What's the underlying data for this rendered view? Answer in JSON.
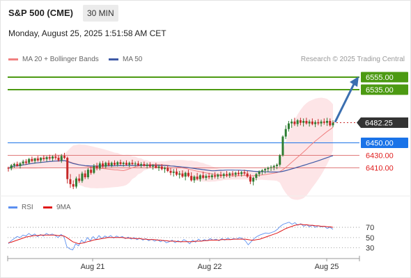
{
  "header": {
    "instrument": "S&P 500 (CME)",
    "interval": "30 MIN",
    "datetime": "Monday, August 25, 2025 1:51:58 AM CET",
    "credit": "Research © 2025 Trading Central"
  },
  "legend": {
    "ma20_label": "MA 20 + Bollinger Bands",
    "ma50_label": "MA 50",
    "rsi_label": "RSI",
    "ma9_label": "9MA"
  },
  "colors": {
    "ma20": "#f08080",
    "ma50": "#3f5aa6",
    "bollinger_fill": "#fde2e4",
    "resistance": "#4c9a12",
    "pivot": "#1a73e8",
    "support": "#e07a7a",
    "support_text": "#e02020",
    "price_tag": "#333333",
    "candle_up": "#2e7d32",
    "candle_down": "#c62828",
    "rsi": "#5b8ff0",
    "rsi_ma": "#e01818",
    "arrow": "#3b6fb0"
  },
  "chart_data": [
    {
      "type": "candlestick",
      "title": "S&P 500 (CME)",
      "interval": "30 MIN",
      "x_ticks": [
        "Aug 21",
        "Aug 22",
        "Aug 25"
      ],
      "y_range": [
        6385,
        6565
      ],
      "last_price": 6482.25,
      "series": [
        {
          "name": "MA 20 + Bollinger Bands",
          "type": "line-band"
        },
        {
          "name": "MA 50",
          "type": "line"
        }
      ],
      "levels": [
        {
          "value": 6555.0,
          "label": "6555.00",
          "kind": "resistance"
        },
        {
          "value": 6535.0,
          "label": "6535.00",
          "kind": "resistance"
        },
        {
          "value": 6450.0,
          "label": "6450.00",
          "kind": "pivot"
        },
        {
          "value": 6430.0,
          "label": "6430.00",
          "kind": "support"
        },
        {
          "value": 6410.0,
          "label": "6410.00",
          "kind": "support"
        }
      ],
      "projection": {
        "from": 6482,
        "to": 6555,
        "direction": "up"
      },
      "candles": [
        [
          6410,
          6412,
          6404,
          6409
        ],
        [
          6409,
          6416,
          6406,
          6414
        ],
        [
          6414,
          6418,
          6410,
          6416
        ],
        [
          6416,
          6420,
          6412,
          6413
        ],
        [
          6413,
          6419,
          6409,
          6417
        ],
        [
          6417,
          6423,
          6414,
          6420
        ],
        [
          6420,
          6424,
          6415,
          6418
        ],
        [
          6418,
          6426,
          6416,
          6424
        ],
        [
          6424,
          6428,
          6419,
          6421
        ],
        [
          6421,
          6426,
          6417,
          6425
        ],
        [
          6425,
          6429,
          6420,
          6422
        ],
        [
          6422,
          6427,
          6418,
          6426
        ],
        [
          6426,
          6430,
          6421,
          6424
        ],
        [
          6424,
          6429,
          6420,
          6427
        ],
        [
          6427,
          6431,
          6422,
          6425
        ],
        [
          6425,
          6430,
          6421,
          6428
        ],
        [
          6428,
          6433,
          6423,
          6426
        ],
        [
          6426,
          6430,
          6420,
          6422
        ],
        [
          6422,
          6432,
          6418,
          6429
        ],
        [
          6429,
          6434,
          6424,
          6426
        ],
        [
          6426,
          6428,
          6385,
          6392
        ],
        [
          6392,
          6400,
          6378,
          6384
        ],
        [
          6384,
          6390,
          6376,
          6380
        ],
        [
          6380,
          6396,
          6377,
          6393
        ],
        [
          6393,
          6400,
          6386,
          6389
        ],
        [
          6389,
          6404,
          6386,
          6401
        ],
        [
          6401,
          6406,
          6392,
          6395
        ],
        [
          6395,
          6410,
          6392,
          6407
        ],
        [
          6407,
          6412,
          6399,
          6402
        ],
        [
          6402,
          6416,
          6400,
          6413
        ],
        [
          6413,
          6418,
          6406,
          6409
        ],
        [
          6409,
          6420,
          6406,
          6417
        ],
        [
          6417,
          6421,
          6410,
          6412
        ],
        [
          6412,
          6420,
          6409,
          6418
        ],
        [
          6418,
          6422,
          6412,
          6414
        ],
        [
          6414,
          6420,
          6411,
          6418
        ],
        [
          6418,
          6422,
          6413,
          6415
        ],
        [
          6415,
          6421,
          6412,
          6419
        ],
        [
          6419,
          6423,
          6414,
          6416
        ],
        [
          6416,
          6420,
          6412,
          6418
        ],
        [
          6418,
          6422,
          6413,
          6415
        ],
        [
          6415,
          6420,
          6411,
          6418
        ],
        [
          6418,
          6423,
          6414,
          6416
        ],
        [
          6416,
          6420,
          6412,
          6417
        ],
        [
          6417,
          6421,
          6413,
          6414
        ],
        [
          6414,
          6419,
          6410,
          6416
        ],
        [
          6416,
          6420,
          6412,
          6413
        ],
        [
          6413,
          6418,
          6409,
          6415
        ],
        [
          6415,
          6419,
          6410,
          6412
        ],
        [
          6412,
          6416,
          6407,
          6414
        ],
        [
          6414,
          6418,
          6409,
          6410
        ],
        [
          6410,
          6415,
          6405,
          6412
        ],
        [
          6412,
          6416,
          6406,
          6408
        ],
        [
          6408,
          6412,
          6402,
          6410
        ],
        [
          6410,
          6414,
          6403,
          6405
        ],
        [
          6405,
          6410,
          6398,
          6402
        ],
        [
          6402,
          6408,
          6396,
          6404
        ],
        [
          6404,
          6409,
          6397,
          6399
        ],
        [
          6399,
          6405,
          6393,
          6401
        ],
        [
          6401,
          6406,
          6394,
          6396
        ],
        [
          6396,
          6404,
          6390,
          6402
        ],
        [
          6402,
          6407,
          6395,
          6397
        ],
        [
          6397,
          6403,
          6388,
          6390
        ],
        [
          6390,
          6398,
          6386,
          6396
        ],
        [
          6396,
          6402,
          6390,
          6392
        ],
        [
          6392,
          6400,
          6388,
          6398
        ],
        [
          6398,
          6404,
          6392,
          6394
        ],
        [
          6394,
          6400,
          6390,
          6397
        ],
        [
          6397,
          6402,
          6392,
          6395
        ],
        [
          6395,
          6401,
          6391,
          6398
        ],
        [
          6398,
          6403,
          6393,
          6396
        ],
        [
          6396,
          6401,
          6392,
          6399
        ],
        [
          6399,
          6404,
          6394,
          6397
        ],
        [
          6397,
          6402,
          6393,
          6400
        ],
        [
          6400,
          6405,
          6395,
          6398
        ],
        [
          6398,
          6403,
          6394,
          6401
        ],
        [
          6401,
          6405,
          6396,
          6399
        ],
        [
          6399,
          6404,
          6395,
          6402
        ],
        [
          6402,
          6406,
          6397,
          6400
        ],
        [
          6400,
          6405,
          6396,
          6403
        ],
        [
          6403,
          6407,
          6398,
          6401
        ],
        [
          6401,
          6405,
          6394,
          6396
        ],
        [
          6396,
          6400,
          6384,
          6388
        ],
        [
          6388,
          6396,
          6382,
          6394
        ],
        [
          6394,
          6402,
          6390,
          6400
        ],
        [
          6400,
          6406,
          6396,
          6404
        ],
        [
          6404,
          6408,
          6399,
          6406
        ],
        [
          6406,
          6410,
          6401,
          6408
        ],
        [
          6408,
          6412,
          6403,
          6410
        ],
        [
          6410,
          6414,
          6405,
          6411
        ],
        [
          6411,
          6415,
          6406,
          6413
        ],
        [
          6413,
          6417,
          6408,
          6415
        ],
        [
          6415,
          6432,
          6412,
          6430
        ],
        [
          6430,
          6462,
          6428,
          6460
        ],
        [
          6460,
          6478,
          6456,
          6472
        ],
        [
          6472,
          6485,
          6468,
          6481
        ],
        [
          6481,
          6488,
          6474,
          6484
        ],
        [
          6484,
          6490,
          6477,
          6480
        ],
        [
          6480,
          6488,
          6476,
          6486
        ],
        [
          6486,
          6490,
          6478,
          6482
        ],
        [
          6482,
          6489,
          6476,
          6485
        ],
        [
          6485,
          6490,
          6479,
          6481
        ],
        [
          6481,
          6487,
          6476,
          6484
        ],
        [
          6484,
          6489,
          6478,
          6480
        ],
        [
          6480,
          6486,
          6475,
          6483
        ],
        [
          6483,
          6488,
          6478,
          6481
        ],
        [
          6481,
          6487,
          6476,
          6484
        ],
        [
          6484,
          6489,
          6479,
          6482
        ],
        [
          6482,
          6490,
          6477,
          6485
        ],
        [
          6485,
          6489,
          6476,
          6478
        ],
        [
          6478,
          6486,
          6475,
          6482.25
        ]
      ]
    },
    {
      "type": "line",
      "title": "RSI",
      "series": [
        {
          "name": "RSI"
        },
        {
          "name": "9MA"
        }
      ],
      "y_ticks": [
        30,
        50,
        70
      ],
      "ylim": [
        20,
        85
      ],
      "rsi": [
        38,
        44,
        48,
        52,
        50,
        55,
        53,
        58,
        54,
        57,
        52,
        56,
        53,
        58,
        55,
        57,
        54,
        50,
        56,
        52,
        32,
        28,
        26,
        38,
        34,
        45,
        40,
        50,
        44,
        52,
        46,
        54,
        48,
        53,
        50,
        54,
        49,
        53,
        50,
        52,
        48,
        51,
        47,
        50,
        46,
        49,
        45,
        48,
        44,
        47,
        43,
        46,
        42,
        45,
        40,
        42,
        45,
        40,
        44,
        41,
        46,
        43,
        38,
        45,
        41,
        47,
        43,
        46,
        44,
        48,
        45,
        47,
        44,
        48,
        45,
        49,
        46,
        48,
        47,
        50,
        48,
        44,
        36,
        42,
        48,
        52,
        55,
        57,
        59,
        58,
        60,
        62,
        66,
        72,
        76,
        78,
        80,
        76,
        79,
        74,
        77,
        72,
        75,
        71,
        74,
        70,
        73,
        71,
        72,
        68,
        70,
        66
      ],
      "rsi_ma": [
        40,
        41,
        43,
        45,
        47,
        49,
        51,
        52,
        53,
        54,
        54,
        55,
        55,
        55,
        55,
        55,
        55,
        54,
        54,
        53,
        50,
        46,
        42,
        40,
        38,
        39,
        40,
        42,
        43,
        45,
        46,
        47,
        48,
        49,
        50,
        50,
        50,
        50,
        50,
        50,
        49,
        49,
        49,
        48,
        48,
        48,
        47,
        47,
        46,
        46,
        46,
        45,
        45,
        44,
        44,
        43,
        43,
        43,
        42,
        42,
        42,
        42,
        42,
        42,
        43,
        43,
        43,
        44,
        44,
        45,
        45,
        45,
        45,
        46,
        46,
        46,
        46,
        47,
        47,
        47,
        47,
        47,
        46,
        45,
        45,
        46,
        47,
        49,
        51,
        53,
        55,
        57,
        59,
        62,
        65,
        68,
        70,
        72,
        74,
        75,
        76,
        75,
        75,
        74,
        74,
        73,
        73,
        72,
        72,
        71,
        71,
        70
      ]
    }
  ]
}
